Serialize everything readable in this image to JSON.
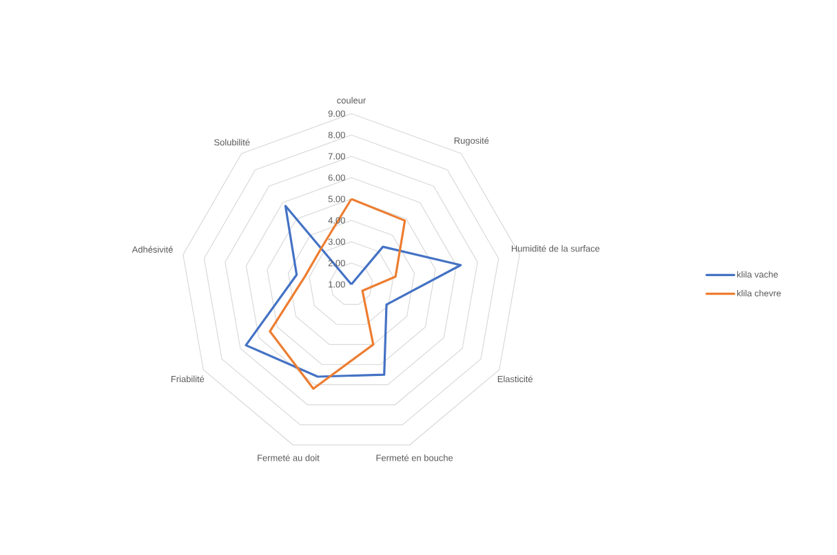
{
  "chart_data": {
    "type": "radar",
    "categories": [
      "couleur",
      "Rugosité",
      "Humidité de  la surface",
      "Elasticité",
      "Fermeté en bouche",
      "Fermeté au doit",
      "Friabilité",
      "Adhésivité",
      "Solubilité"
    ],
    "series": [
      {
        "name": "klila vache",
        "color": "#4472c4",
        "values": [
          1.0,
          3.3,
          6.2,
          2.9,
          5.5,
          5.6,
          6.7,
          3.6,
          5.8
        ]
      },
      {
        "name": "klila chevre",
        "color": "#ed7d31",
        "values": [
          5.0,
          4.9,
          3.1,
          1.6,
          4.0,
          6.2,
          5.4,
          3.2,
          3.2
        ]
      }
    ],
    "ylim": [
      1,
      9
    ],
    "yticks": [
      {
        "value": 1,
        "label": "1.00"
      },
      {
        "value": 2,
        "label": "2.00"
      },
      {
        "value": 3,
        "label": "3.00"
      },
      {
        "value": 4,
        "label": "4.00"
      },
      {
        "value": 5,
        "label": "5.00"
      },
      {
        "value": 6,
        "label": "6.00"
      },
      {
        "value": 7,
        "label": "7.00"
      },
      {
        "value": 8,
        "label": "8.00"
      },
      {
        "value": 9,
        "label": "9.00"
      }
    ],
    "grid": true,
    "legend": "right"
  }
}
